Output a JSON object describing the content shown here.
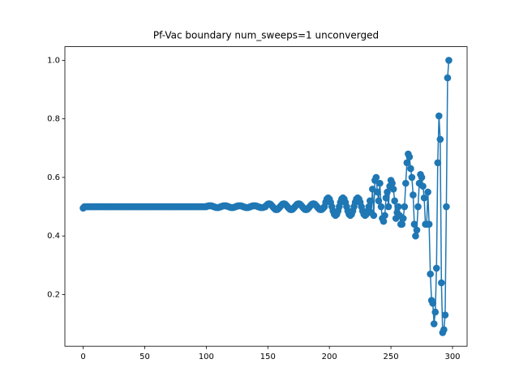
{
  "chart_data": {
    "type": "line",
    "title": "Pf-Vac boundary num_sweeps=1 unconverged",
    "color": "#1f77b4",
    "xlim": [
      -14.85,
      311.85
    ],
    "xticks": [
      0,
      50,
      100,
      150,
      200,
      250,
      300
    ],
    "ylim": [
      0.0235,
      1.0465
    ],
    "yticks": [
      {
        "value": 0.2,
        "label": "0.2"
      },
      {
        "value": 0.4,
        "label": "0.4"
      },
      {
        "value": 0.6,
        "label": "0.6"
      },
      {
        "value": 0.8,
        "label": "0.8"
      },
      {
        "value": 1.0,
        "label": "1.0"
      }
    ],
    "x": [
      0,
      1,
      2,
      3,
      4,
      5,
      6,
      7,
      8,
      9,
      10,
      11,
      12,
      13,
      14,
      15,
      16,
      17,
      18,
      19,
      20,
      21,
      22,
      23,
      24,
      25,
      26,
      27,
      28,
      29,
      30,
      31,
      32,
      33,
      34,
      35,
      36,
      37,
      38,
      39,
      40,
      41,
      42,
      43,
      44,
      45,
      46,
      47,
      48,
      49,
      50,
      51,
      52,
      53,
      54,
      55,
      56,
      57,
      58,
      59,
      60,
      61,
      62,
      63,
      64,
      65,
      66,
      67,
      68,
      69,
      70,
      71,
      72,
      73,
      74,
      75,
      76,
      77,
      78,
      79,
      80,
      81,
      82,
      83,
      84,
      85,
      86,
      87,
      88,
      89,
      90,
      91,
      92,
      93,
      94,
      95,
      96,
      97,
      98,
      99,
      100,
      101,
      102,
      103,
      104,
      105,
      106,
      107,
      108,
      109,
      110,
      111,
      112,
      113,
      114,
      115,
      116,
      117,
      118,
      119,
      120,
      121,
      122,
      123,
      124,
      125,
      126,
      127,
      128,
      129,
      130,
      131,
      132,
      133,
      134,
      135,
      136,
      137,
      138,
      139,
      140,
      141,
      142,
      143,
      144,
      145,
      146,
      147,
      148,
      149,
      150,
      151,
      152,
      153,
      154,
      155,
      156,
      157,
      158,
      159,
      160,
      161,
      162,
      163,
      164,
      165,
      166,
      167,
      168,
      169,
      170,
      171,
      172,
      173,
      174,
      175,
      176,
      177,
      178,
      179,
      180,
      181,
      182,
      183,
      184,
      185,
      186,
      187,
      188,
      189,
      190,
      191,
      192,
      193,
      194,
      195,
      196,
      197,
      198,
      199,
      200,
      201,
      202,
      203,
      204,
      205,
      206,
      207,
      208,
      209,
      210,
      211,
      212,
      213,
      214,
      215,
      216,
      217,
      218,
      219,
      220,
      221,
      222,
      223,
      224,
      225,
      226,
      227,
      228,
      229,
      230,
      231,
      232,
      233,
      234,
      235,
      236,
      237,
      238,
      239,
      240,
      241,
      242,
      243,
      244,
      245,
      246,
      247,
      248,
      249,
      250,
      251,
      252,
      253,
      254,
      255,
      256,
      257,
      258,
      259,
      260,
      261,
      262,
      263,
      264,
      265,
      266,
      267,
      268,
      269,
      270,
      271,
      272,
      273,
      274,
      275,
      276,
      277,
      278,
      279,
      280,
      281,
      282,
      283,
      284,
      285,
      286,
      287,
      288,
      289,
      290,
      291,
      292,
      293,
      294,
      295,
      296,
      297
    ],
    "values": [
      0.495,
      0.5,
      0.5,
      0.5,
      0.5,
      0.5,
      0.5,
      0.5,
      0.5,
      0.5,
      0.5,
      0.5,
      0.5,
      0.5,
      0.5,
      0.5,
      0.5,
      0.5,
      0.5,
      0.5,
      0.5,
      0.5,
      0.5,
      0.5,
      0.5,
      0.5,
      0.5,
      0.5,
      0.5,
      0.5,
      0.5,
      0.5,
      0.5,
      0.5,
      0.5,
      0.5,
      0.5,
      0.5,
      0.5,
      0.5,
      0.5,
      0.5,
      0.5,
      0.5,
      0.5,
      0.5,
      0.5,
      0.5,
      0.5,
      0.5,
      0.5,
      0.5,
      0.5,
      0.5,
      0.5,
      0.5,
      0.5,
      0.5,
      0.5,
      0.5,
      0.5,
      0.5,
      0.5,
      0.5,
      0.5,
      0.5,
      0.5,
      0.5,
      0.5,
      0.5,
      0.5,
      0.5,
      0.5,
      0.5,
      0.5,
      0.5,
      0.5,
      0.5,
      0.5,
      0.5,
      0.5,
      0.5,
      0.5,
      0.5,
      0.5,
      0.5,
      0.5,
      0.5,
      0.5,
      0.5,
      0.5,
      0.5,
      0.5,
      0.5,
      0.5,
      0.5,
      0.5,
      0.5,
      0.5,
      0.5,
      0.5,
      0.502,
      0.503,
      0.503,
      0.503,
      0.502,
      0.5,
      0.499,
      0.497,
      0.497,
      0.497,
      0.499,
      0.5,
      0.502,
      0.503,
      0.503,
      0.503,
      0.502,
      0.5,
      0.499,
      0.497,
      0.497,
      0.497,
      0.499,
      0.5,
      0.502,
      0.503,
      0.503,
      0.503,
      0.502,
      0.5,
      0.499,
      0.497,
      0.497,
      0.497,
      0.499,
      0.5,
      0.502,
      0.503,
      0.503,
      0.503,
      0.502,
      0.5,
      0.499,
      0.497,
      0.497,
      0.497,
      0.499,
      0.5,
      0.505,
      0.509,
      0.51,
      0.509,
      0.505,
      0.5,
      0.495,
      0.491,
      0.49,
      0.491,
      0.495,
      0.5,
      0.505,
      0.509,
      0.51,
      0.509,
      0.505,
      0.5,
      0.495,
      0.491,
      0.49,
      0.491,
      0.495,
      0.5,
      0.505,
      0.509,
      0.51,
      0.509,
      0.505,
      0.5,
      0.495,
      0.491,
      0.49,
      0.491,
      0.495,
      0.5,
      0.505,
      0.509,
      0.51,
      0.509,
      0.505,
      0.5,
      0.495,
      0.491,
      0.49,
      0.491,
      0.495,
      0.5,
      0.515,
      0.526,
      0.53,
      0.526,
      0.515,
      0.5,
      0.485,
      0.474,
      0.47,
      0.474,
      0.485,
      0.5,
      0.515,
      0.526,
      0.53,
      0.526,
      0.515,
      0.5,
      0.485,
      0.474,
      0.47,
      0.474,
      0.485,
      0.5,
      0.515,
      0.526,
      0.53,
      0.526,
      0.515,
      0.5,
      0.485,
      0.474,
      0.47,
      0.474,
      0.485,
      0.5,
      0.52,
      0.48,
      0.56,
      0.47,
      0.59,
      0.6,
      0.55,
      0.52,
      0.58,
      0.5,
      0.46,
      0.45,
      0.47,
      0.53,
      0.55,
      0.5,
      0.57,
      0.59,
      0.58,
      0.56,
      0.52,
      0.46,
      0.48,
      0.5,
      0.47,
      0.44,
      0.44,
      0.46,
      0.5,
      0.58,
      0.65,
      0.68,
      0.67,
      0.63,
      0.6,
      0.54,
      0.44,
      0.4,
      0.42,
      0.5,
      0.58,
      0.61,
      0.6,
      0.57,
      0.53,
      0.44,
      0.44,
      0.55,
      0.44,
      0.27,
      0.18,
      0.17,
      0.1,
      0.14,
      0.29,
      0.65,
      0.81,
      0.73,
      0.24,
      0.07,
      0.08,
      0.13,
      0.5,
      0.94,
      1.0
    ]
  }
}
